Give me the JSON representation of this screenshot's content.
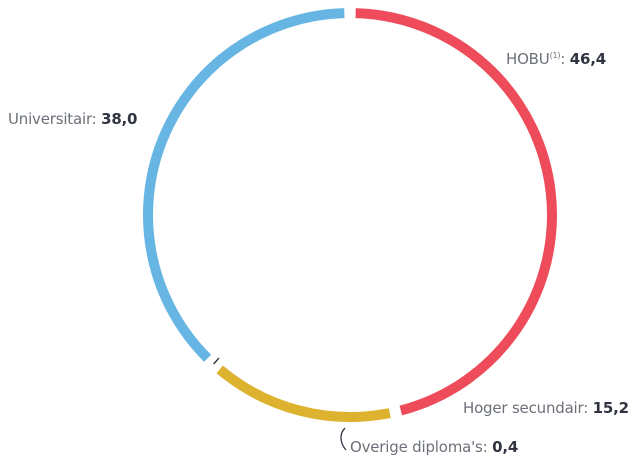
{
  "chart_data": {
    "type": "pie",
    "style": "ring",
    "slices": [
      {
        "label": "HOBU",
        "footnote": "(1)",
        "value": 46.4,
        "value_text": "46,4",
        "color": "#ee4c5a"
      },
      {
        "label": "Hoger secundair",
        "value": 15.2,
        "value_text": "15,2",
        "color": "#ddb22e"
      },
      {
        "label": "Overige diploma's",
        "value": 0.4,
        "value_text": "0,4",
        "color": "#2f3440"
      },
      {
        "label": "Universitair",
        "value": 38.0,
        "value_text": "38,0",
        "color": "#66b5e3"
      }
    ]
  }
}
